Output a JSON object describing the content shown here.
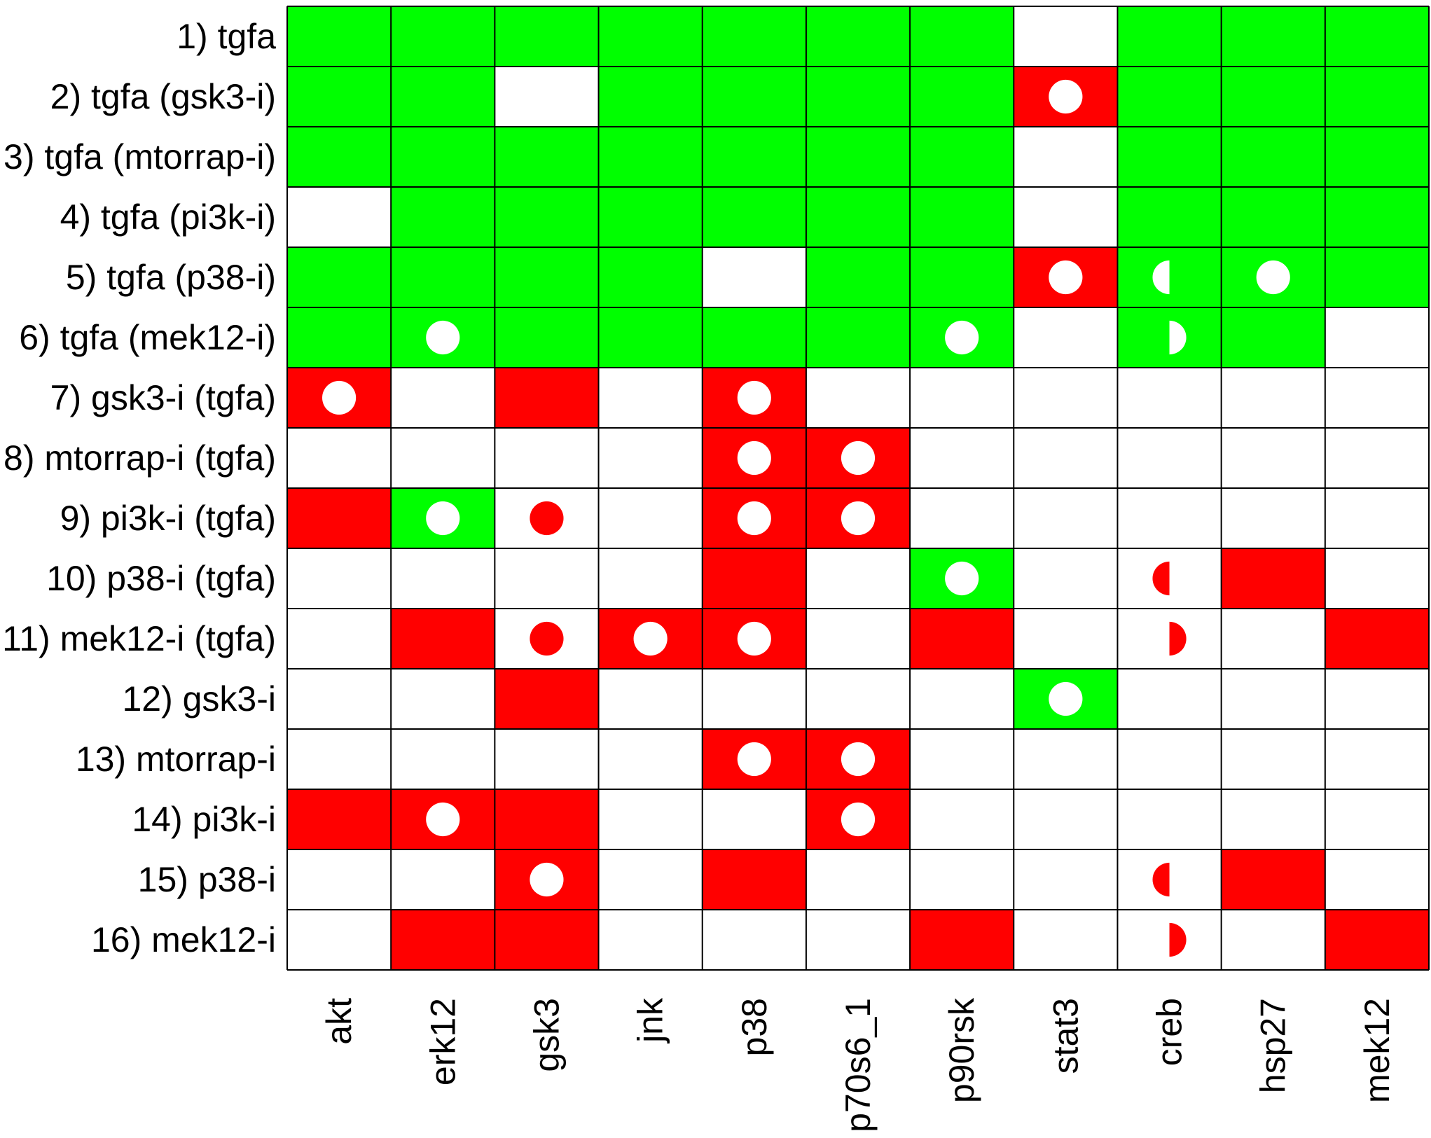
{
  "chart_data": {
    "type": "heatmap",
    "title": "",
    "xlabel": "",
    "ylabel": "",
    "columns": [
      "akt",
      "erk12",
      "gsk3",
      "jnk",
      "p38",
      "p70s6_1",
      "p90rsk",
      "stat3",
      "creb",
      "hsp27",
      "mek12"
    ],
    "rows": [
      "1) tgfa",
      "2) tgfa (gsk3-i)",
      "3) tgfa (mtorrap-i)",
      "4) tgfa (pi3k-i)",
      "5) tgfa (p38-i)",
      "6) tgfa (mek12-i)",
      "7) gsk3-i (tgfa)",
      "8) mtorrap-i (tgfa)",
      "9) pi3k-i (tgfa)",
      "10) p38-i (tgfa)",
      "11) mek12-i (tgfa)",
      "12) gsk3-i",
      "13) mtorrap-i",
      "14) pi3k-i",
      "15) p38-i",
      "16) mek12-i"
    ],
    "fill_codes": {
      "G": "green cell",
      "R": "red cell",
      "W": "white cell"
    },
    "cell_fills": [
      [
        "G",
        "G",
        "G",
        "G",
        "G",
        "G",
        "G",
        "W",
        "G",
        "G",
        "G"
      ],
      [
        "G",
        "G",
        "W",
        "G",
        "G",
        "G",
        "G",
        "R",
        "G",
        "G",
        "G"
      ],
      [
        "G",
        "G",
        "G",
        "G",
        "G",
        "G",
        "G",
        "W",
        "G",
        "G",
        "G"
      ],
      [
        "W",
        "G",
        "G",
        "G",
        "G",
        "G",
        "G",
        "W",
        "G",
        "G",
        "G"
      ],
      [
        "G",
        "G",
        "G",
        "G",
        "W",
        "G",
        "G",
        "R",
        "G",
        "G",
        "G"
      ],
      [
        "G",
        "G",
        "G",
        "G",
        "G",
        "G",
        "G",
        "W",
        "G",
        "G",
        "W"
      ],
      [
        "R",
        "W",
        "R",
        "W",
        "R",
        "W",
        "W",
        "W",
        "W",
        "W",
        "W"
      ],
      [
        "W",
        "W",
        "W",
        "W",
        "R",
        "R",
        "W",
        "W",
        "W",
        "W",
        "W"
      ],
      [
        "R",
        "G",
        "W",
        "W",
        "R",
        "R",
        "W",
        "W",
        "W",
        "W",
        "W"
      ],
      [
        "W",
        "W",
        "W",
        "W",
        "R",
        "W",
        "G",
        "W",
        "W",
        "R",
        "W"
      ],
      [
        "W",
        "R",
        "W",
        "R",
        "R",
        "W",
        "R",
        "W",
        "W",
        "W",
        "R"
      ],
      [
        "W",
        "W",
        "R",
        "W",
        "W",
        "W",
        "W",
        "G",
        "W",
        "W",
        "W"
      ],
      [
        "W",
        "W",
        "W",
        "W",
        "R",
        "R",
        "W",
        "W",
        "W",
        "W",
        "W"
      ],
      [
        "R",
        "R",
        "R",
        "W",
        "W",
        "R",
        "W",
        "W",
        "W",
        "W",
        "W"
      ],
      [
        "W",
        "W",
        "R",
        "W",
        "R",
        "W",
        "W",
        "W",
        "W",
        "R",
        "W"
      ],
      [
        "W",
        "R",
        "R",
        "W",
        "W",
        "W",
        "R",
        "W",
        "W",
        "W",
        "R"
      ]
    ],
    "marker_codes": {
      "": "none",
      "c": "full circle",
      "l": "left half circle",
      "r": "right half circle"
    },
    "markers": [
      [
        "",
        "",
        "",
        "",
        "",
        "",
        "",
        "",
        "",
        "",
        ""
      ],
      [
        "",
        "",
        "",
        "",
        "",
        "",
        "",
        "c",
        "",
        "",
        ""
      ],
      [
        "",
        "",
        "",
        "",
        "",
        "",
        "",
        "",
        "",
        "",
        ""
      ],
      [
        "",
        "",
        "",
        "",
        "",
        "",
        "",
        "",
        "",
        "",
        ""
      ],
      [
        "",
        "",
        "",
        "",
        "",
        "",
        "",
        "c",
        "l",
        "c",
        ""
      ],
      [
        "",
        "c",
        "",
        "",
        "",
        "",
        "c",
        "",
        "r",
        "",
        ""
      ],
      [
        "c",
        "",
        "",
        "",
        "c",
        "",
        "",
        "",
        "",
        "",
        ""
      ],
      [
        "",
        "",
        "",
        "",
        "c",
        "c",
        "",
        "",
        "",
        "",
        ""
      ],
      [
        "",
        "c",
        "c",
        "",
        "c",
        "c",
        "",
        "",
        "",
        "",
        ""
      ],
      [
        "",
        "",
        "",
        "",
        "",
        "",
        "c",
        "",
        "l",
        "",
        ""
      ],
      [
        "",
        "",
        "c",
        "c",
        "c",
        "",
        "",
        "",
        "r",
        "",
        ""
      ],
      [
        "",
        "",
        "",
        "",
        "",
        "",
        "",
        "c",
        "",
        "",
        ""
      ],
      [
        "",
        "",
        "",
        "",
        "c",
        "c",
        "",
        "",
        "",
        "",
        ""
      ],
      [
        "",
        "c",
        "",
        "",
        "",
        "c",
        "",
        "",
        "",
        "",
        ""
      ],
      [
        "",
        "",
        "c",
        "",
        "",
        "",
        "",
        "",
        "l",
        "",
        ""
      ],
      [
        "",
        "",
        "",
        "",
        "",
        "",
        "",
        "",
        "r",
        "",
        ""
      ]
    ],
    "colors": {
      "green": "#00ff00",
      "red": "#ff0000",
      "white": "#ffffff",
      "grid": "#000000"
    },
    "grid": true
  }
}
